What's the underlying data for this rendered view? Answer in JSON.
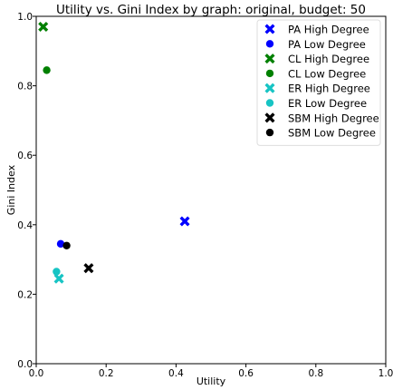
{
  "chart_data": {
    "type": "scatter",
    "title": "Utility vs. Gini Index by graph: original, budget: 50",
    "xlabel": "Utility",
    "ylabel": "Gini Index",
    "xlim": [
      0.0,
      1.0
    ],
    "ylim": [
      0.0,
      1.0
    ],
    "xticks": [
      "0.0",
      "0.2",
      "0.4",
      "0.6",
      "0.8",
      "1.0"
    ],
    "yticks": [
      "0.0",
      "0.2",
      "0.4",
      "0.6",
      "0.8",
      "1.0"
    ],
    "grid": false,
    "legend_position": "top-right",
    "series": [
      {
        "name": "PA High Degree",
        "marker": "x",
        "color": "#0000ff",
        "points": [
          {
            "x": 0.425,
            "y": 0.41
          }
        ]
      },
      {
        "name": "PA Low Degree",
        "marker": "o",
        "color": "#0000ff",
        "points": [
          {
            "x": 0.07,
            "y": 0.345
          }
        ]
      },
      {
        "name": "CL High Degree",
        "marker": "x",
        "color": "#008000",
        "points": [
          {
            "x": 0.02,
            "y": 0.97
          }
        ]
      },
      {
        "name": "CL Low Degree",
        "marker": "o",
        "color": "#008000",
        "points": [
          {
            "x": 0.03,
            "y": 0.845
          }
        ]
      },
      {
        "name": "ER High Degree",
        "marker": "x",
        "color": "#17c4c4",
        "points": [
          {
            "x": 0.065,
            "y": 0.245
          }
        ]
      },
      {
        "name": "ER Low Degree",
        "marker": "o",
        "color": "#17c4c4",
        "points": [
          {
            "x": 0.058,
            "y": 0.265
          }
        ]
      },
      {
        "name": "SBM High Degree",
        "marker": "x",
        "color": "#000000",
        "points": [
          {
            "x": 0.15,
            "y": 0.275
          }
        ]
      },
      {
        "name": "SBM Low Degree",
        "marker": "o",
        "color": "#000000",
        "points": [
          {
            "x": 0.087,
            "y": 0.34
          }
        ]
      }
    ]
  }
}
